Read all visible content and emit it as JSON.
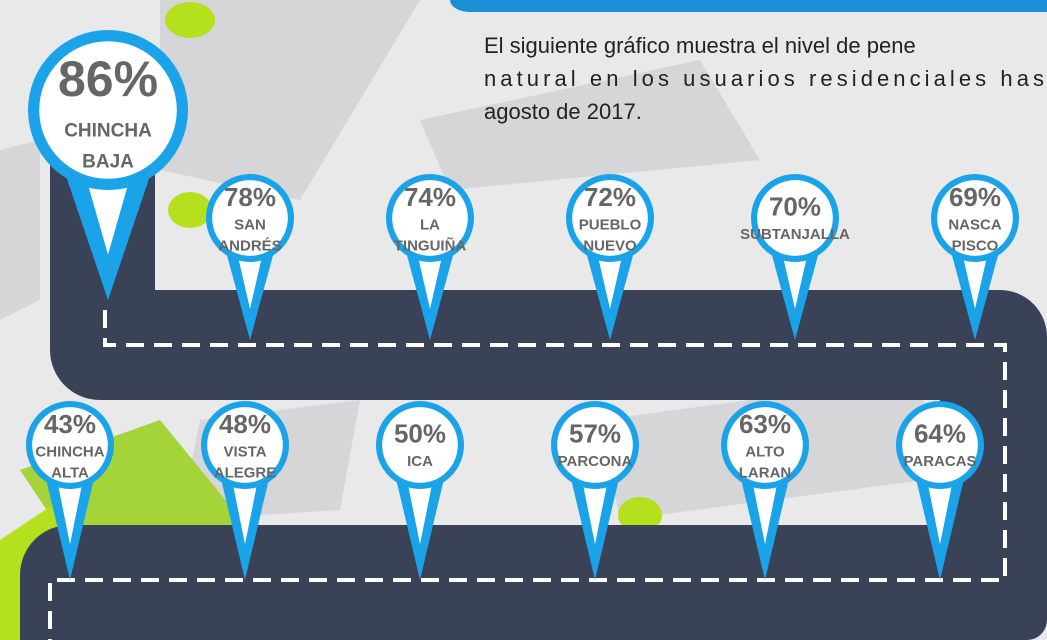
{
  "intro": {
    "lines": [
      "El siguiente gráfico muestra el nivel de pene",
      "natural en los usuarios residenciales has",
      "agosto de 2017."
    ]
  },
  "pins": [
    {
      "value": "86%",
      "name": [
        "CHINCHA",
        "BAJA"
      ]
    },
    {
      "value": "78%",
      "name": [
        "SAN",
        "ANDRÉS"
      ]
    },
    {
      "value": "74%",
      "name": [
        "LA",
        "TINGUIÑA"
      ]
    },
    {
      "value": "72%",
      "name": [
        "PUEBLO",
        "NUEVO"
      ]
    },
    {
      "value": "70%",
      "name": [
        "SUBTANJALLA"
      ]
    },
    {
      "value": "69%",
      "name": [
        "NASCA",
        "PISCO"
      ]
    },
    {
      "value": "64%",
      "name": [
        "PARACAS"
      ]
    },
    {
      "value": "63%",
      "name": [
        "ALTO",
        "LARAN"
      ]
    },
    {
      "value": "57%",
      "name": [
        "PARCONA"
      ]
    },
    {
      "value": "50%",
      "name": [
        "ICA"
      ]
    },
    {
      "value": "48%",
      "name": [
        "VISTA",
        "ALEGRE"
      ]
    },
    {
      "value": "43%",
      "name": [
        "CHINCHA",
        "ALTA"
      ]
    }
  ]
}
